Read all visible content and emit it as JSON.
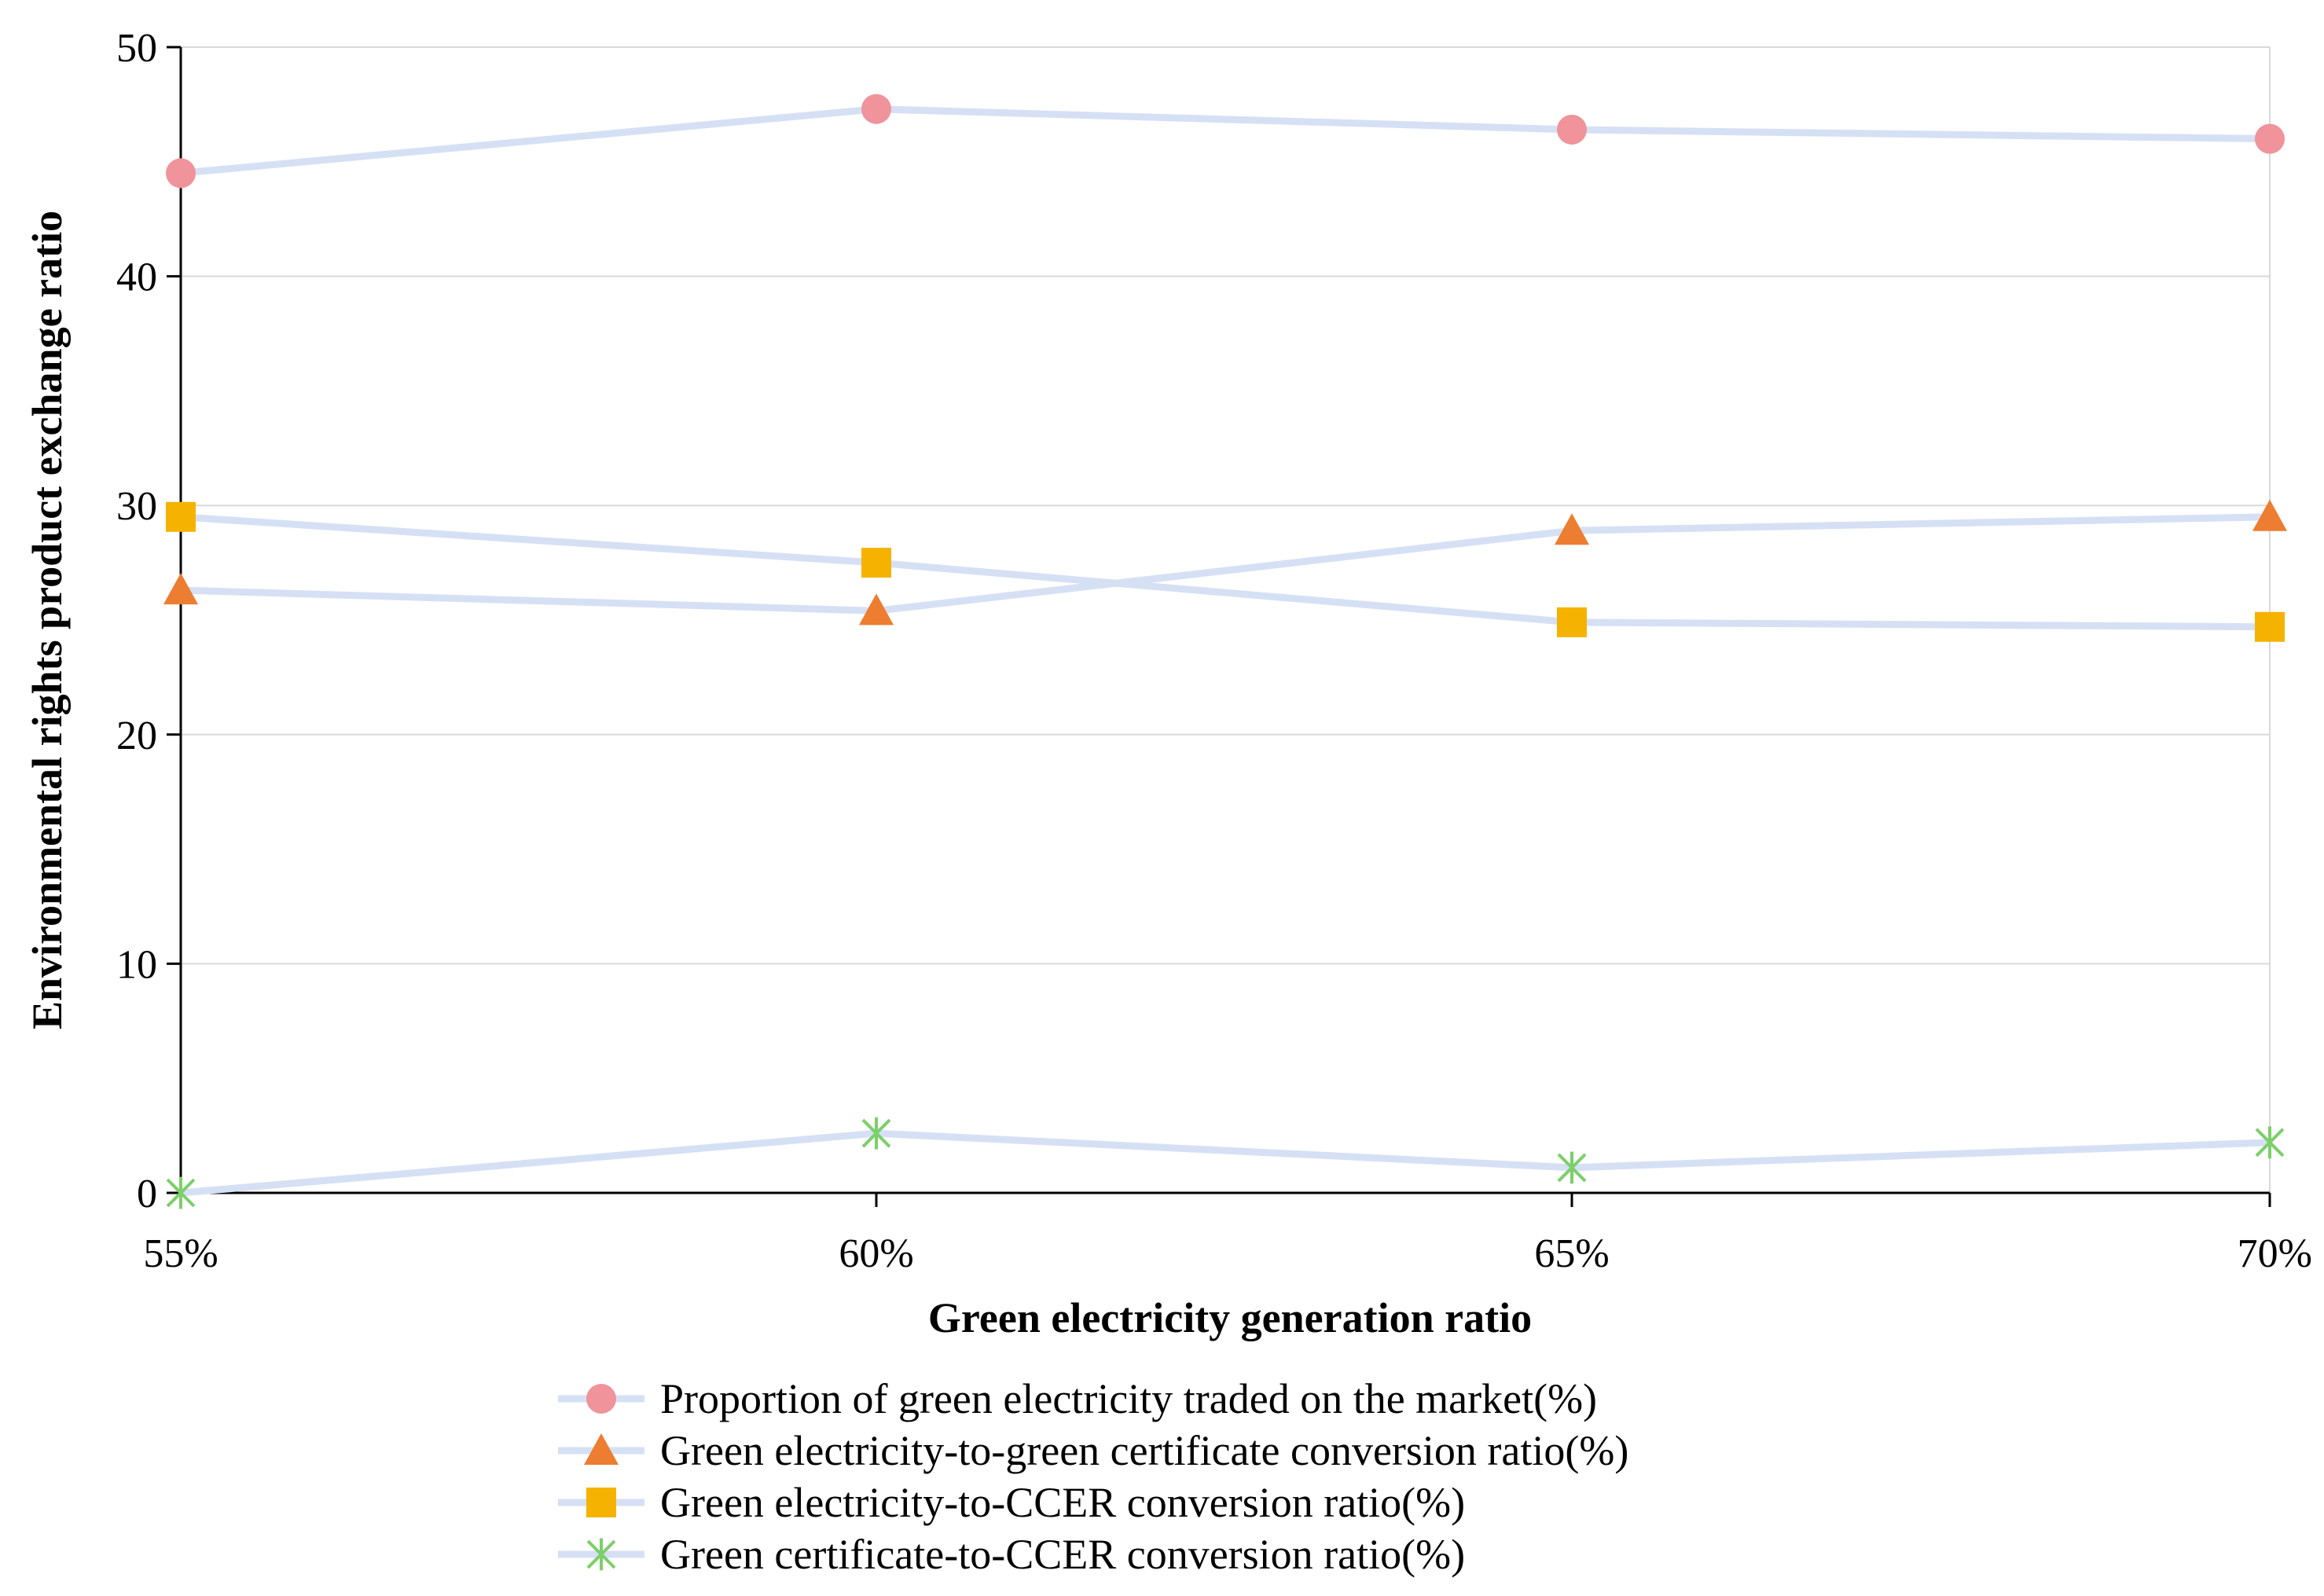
{
  "chart_data": {
    "type": "line",
    "title": "",
    "xlabel": "Green electricity generation ratio",
    "ylabel": "Environmental rights product exchange ratio",
    "categories": [
      "55%",
      "60%",
      "65%",
      "70%"
    ],
    "ylim": [
      0,
      50
    ],
    "yticks": [
      0,
      10,
      20,
      30,
      40,
      50
    ],
    "grid": "horizontal",
    "legend_position": "bottom",
    "line_color": "#d6e0f5",
    "series": [
      {
        "name": "Proportion of green electricity traded on the market(%)",
        "marker": "circle",
        "color": "#f0939b",
        "values": [
          44.5,
          47.3,
          46.4,
          46.0
        ]
      },
      {
        "name": "Green electricity-to-green certificate conversion ratio(%)",
        "marker": "triangle",
        "color": "#ed7d31",
        "values": [
          26.3,
          25.4,
          28.9,
          29.5
        ]
      },
      {
        "name": "Green electricity-to-CCER conversion ratio(%)",
        "marker": "square",
        "color": "#f5b300",
        "values": [
          29.5,
          27.5,
          24.9,
          24.7
        ]
      },
      {
        "name": "Green certificate-to-CCER conversion ratio(%)",
        "marker": "star",
        "color": "#7ccf6a",
        "values": [
          0.0,
          2.6,
          1.1,
          2.2
        ]
      }
    ]
  }
}
